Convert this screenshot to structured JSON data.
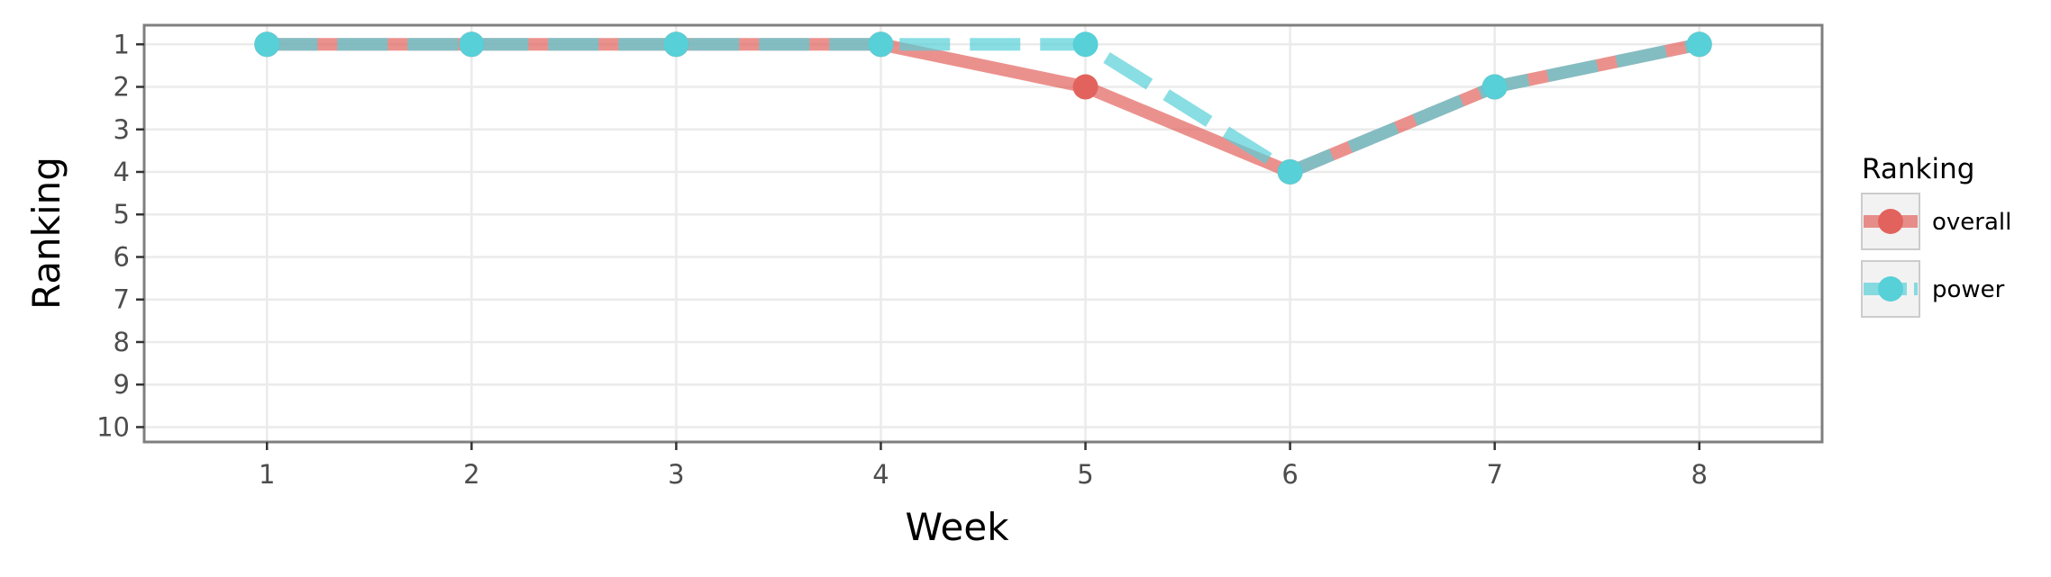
{
  "chart_data": {
    "type": "line",
    "xlabel": "Week",
    "ylabel": "Ranking",
    "x": [
      1,
      2,
      3,
      4,
      5,
      6,
      7,
      8
    ],
    "xlim": [
      0.4,
      8.6
    ],
    "ylim": [
      10.35,
      0.55
    ],
    "y_inverted": true,
    "x_ticks": [
      "1",
      "2",
      "3",
      "4",
      "5",
      "6",
      "7",
      "8"
    ],
    "y_ticks": [
      "1",
      "2",
      "3",
      "4",
      "5",
      "6",
      "7",
      "8",
      "9",
      "10"
    ],
    "grid": true,
    "legend": {
      "title": "Ranking",
      "position": "right"
    },
    "series": [
      {
        "name": "overall",
        "values": [
          1,
          1,
          1,
          1,
          2,
          4,
          2,
          1
        ],
        "color": "#E2635D",
        "line_style": "solid"
      },
      {
        "name": "power",
        "values": [
          1,
          1,
          1,
          1,
          1,
          4,
          2,
          1
        ],
        "color": "#57D0D8",
        "line_style": "dashed"
      }
    ]
  }
}
